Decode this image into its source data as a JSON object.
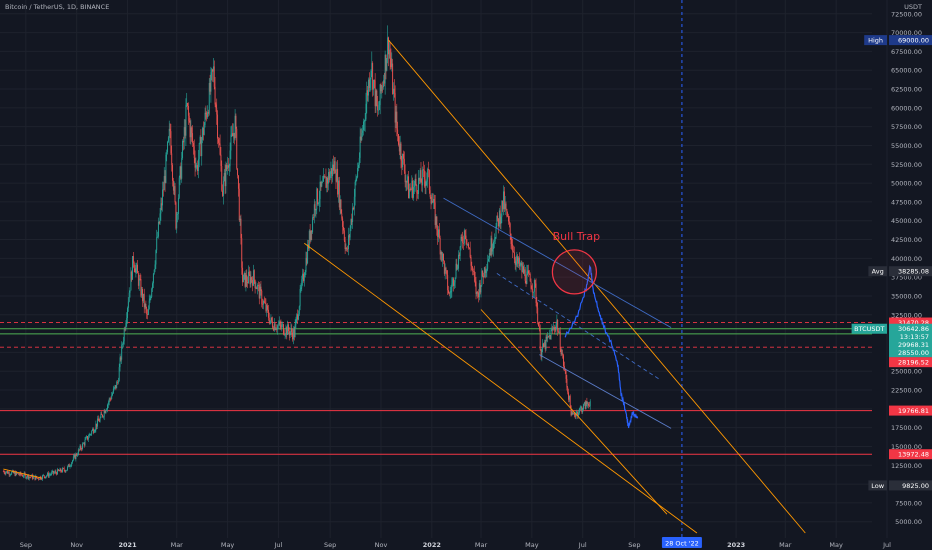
{
  "header": {
    "symbol_title": "Bitcoin / TetherUS, 1D, BINANCE"
  },
  "colors": {
    "background": "#131722",
    "grid": "#1e222d",
    "up": "#26a69a",
    "down": "#ef5350",
    "projection": "#2962ff",
    "trendline": "#ff9800",
    "resistance_channel": "#3f6bc4",
    "red_level": "#f23645",
    "green_level": "#4caf50",
    "label_dark": "#2a2e39",
    "label_blue": "#1e3a8a"
  },
  "chart_data": {
    "type": "candlestick",
    "title": "Bitcoin / TetherUS, 1D, BINANCE",
    "price_axis_unit": "USDT",
    "ylim": [
      3500,
      73000
    ],
    "x_ticks": [
      {
        "label": "Sep",
        "date": "2020-09-01",
        "bold": false
      },
      {
        "label": "Nov",
        "date": "2020-11-01",
        "bold": false
      },
      {
        "label": "2021",
        "date": "2021-01-01",
        "bold": true
      },
      {
        "label": "Mar",
        "date": "2021-03-01",
        "bold": false
      },
      {
        "label": "May",
        "date": "2021-05-01",
        "bold": false
      },
      {
        "label": "Jul",
        "date": "2021-07-01",
        "bold": false
      },
      {
        "label": "Sep",
        "date": "2021-09-01",
        "bold": false
      },
      {
        "label": "Nov",
        "date": "2021-11-01",
        "bold": false
      },
      {
        "label": "2022",
        "date": "2022-01-01",
        "bold": true
      },
      {
        "label": "Mar",
        "date": "2022-03-01",
        "bold": false
      },
      {
        "label": "May",
        "date": "2022-05-01",
        "bold": false
      },
      {
        "label": "Jul",
        "date": "2022-07-01",
        "bold": false
      },
      {
        "label": "Sep",
        "date": "2022-09-01",
        "bold": false
      },
      {
        "label": "2023",
        "date": "2023-01-01",
        "bold": true
      },
      {
        "label": "Mar",
        "date": "2023-03-01",
        "bold": false
      },
      {
        "label": "May",
        "date": "2023-05-01",
        "bold": false
      },
      {
        "label": "Jul",
        "date": "2023-07-01",
        "bold": false
      }
    ],
    "y_ticks": [
      "5000.00",
      "7500.00",
      "10000.00",
      "12500.00",
      "15000.00",
      "17500.00",
      "20000.00",
      "22500.00",
      "25000.00",
      "27500.00",
      "30000.00",
      "32500.00",
      "35000.00",
      "37500.00",
      "40000.00",
      "42500.00",
      "45000.00",
      "47500.00",
      "50000.00",
      "52500.00",
      "55000.00",
      "57500.00",
      "60000.00",
      "62500.00",
      "65000.00",
      "67500.00",
      "70000.00",
      "72500.00"
    ],
    "price_series": [
      {
        "date": "2020-08-05",
        "price": 11700
      },
      {
        "date": "2020-09-15",
        "price": 10800
      },
      {
        "date": "2020-10-20",
        "price": 12000
      },
      {
        "date": "2020-11-10",
        "price": 15500
      },
      {
        "date": "2020-12-01",
        "price": 19000
      },
      {
        "date": "2020-12-20",
        "price": 23500
      },
      {
        "date": "2021-01-08",
        "price": 40000
      },
      {
        "date": "2021-01-25",
        "price": 32000
      },
      {
        "date": "2021-02-10",
        "price": 46500
      },
      {
        "date": "2021-02-21",
        "price": 57000
      },
      {
        "date": "2021-02-28",
        "price": 45000
      },
      {
        "date": "2021-03-13",
        "price": 60000
      },
      {
        "date": "2021-03-25",
        "price": 52000
      },
      {
        "date": "2021-04-14",
        "price": 64800
      },
      {
        "date": "2021-04-25",
        "price": 49000
      },
      {
        "date": "2021-05-10",
        "price": 58000
      },
      {
        "date": "2021-05-19",
        "price": 37000
      },
      {
        "date": "2021-06-01",
        "price": 37500
      },
      {
        "date": "2021-06-22",
        "price": 31500
      },
      {
        "date": "2021-07-20",
        "price": 30000
      },
      {
        "date": "2021-08-14",
        "price": 47500
      },
      {
        "date": "2021-09-07",
        "price": 52500
      },
      {
        "date": "2021-09-21",
        "price": 40500
      },
      {
        "date": "2021-10-20",
        "price": 66000
      },
      {
        "date": "2021-10-28",
        "price": 59000
      },
      {
        "date": "2021-11-10",
        "price": 69000
      },
      {
        "date": "2021-11-20",
        "price": 57000
      },
      {
        "date": "2021-12-04",
        "price": 49000
      },
      {
        "date": "2021-12-27",
        "price": 51000
      },
      {
        "date": "2022-01-22",
        "price": 35000
      },
      {
        "date": "2022-02-10",
        "price": 44000
      },
      {
        "date": "2022-02-24",
        "price": 35000
      },
      {
        "date": "2022-03-28",
        "price": 47500
      },
      {
        "date": "2022-04-12",
        "price": 39500
      },
      {
        "date": "2022-05-05",
        "price": 36000
      },
      {
        "date": "2022-05-12",
        "price": 27500
      },
      {
        "date": "2022-05-31",
        "price": 31500
      },
      {
        "date": "2022-06-18",
        "price": 19000
      },
      {
        "date": "2022-07-10",
        "price": 21000
      }
    ],
    "projection": [
      {
        "date": "2022-06-10",
        "price": 29500
      },
      {
        "date": "2022-06-25",
        "price": 32500
      },
      {
        "date": "2022-07-05",
        "price": 36000
      },
      {
        "date": "2022-07-10",
        "price": 39000
      },
      {
        "date": "2022-07-14",
        "price": 35500
      },
      {
        "date": "2022-07-20",
        "price": 33000
      },
      {
        "date": "2022-07-26",
        "price": 31000
      },
      {
        "date": "2022-08-05",
        "price": 28500
      },
      {
        "date": "2022-08-12",
        "price": 26000
      },
      {
        "date": "2022-08-16",
        "price": 22000
      },
      {
        "date": "2022-08-22",
        "price": 19500
      },
      {
        "date": "2022-08-25",
        "price": 17500
      },
      {
        "date": "2022-08-30",
        "price": 19500
      },
      {
        "date": "2022-09-05",
        "price": 18800
      }
    ],
    "trendlines": [
      {
        "kind": "upper_wedge",
        "from": {
          "date": "2021-11-10",
          "price": 69000
        },
        "to": {
          "date": "2023-03-25",
          "price": 3500
        }
      },
      {
        "kind": "lower_wedge",
        "from": {
          "date": "2021-08-01",
          "price": 42000
        },
        "to": {
          "date": "2022-11-15",
          "price": 3500
        }
      },
      {
        "kind": "pre_2021_base",
        "from": {
          "date": "2020-08-05",
          "price": 12000
        },
        "to": {
          "date": "2020-09-20",
          "price": 10800
        }
      },
      {
        "kind": "upper_channel",
        "from": {
          "date": "2022-01-15",
          "price": 48000
        },
        "to": {
          "date": "2022-10-15",
          "price": 30800
        }
      },
      {
        "kind": "lower_channel_dashed",
        "from": {
          "date": "2022-03-20",
          "price": 38000
        },
        "to": {
          "date": "2022-09-30",
          "price": 24000
        }
      },
      {
        "kind": "descending_support",
        "from": {
          "date": "2022-03-01",
          "price": 33200
        },
        "to": {
          "date": "2022-10-10",
          "price": 6000
        }
      },
      {
        "kind": "blue_support",
        "from": {
          "date": "2022-05-10",
          "price": 27200
        },
        "to": {
          "date": "2022-10-15",
          "price": 17400
        }
      }
    ],
    "horizontal_levels": [
      {
        "price": 31470.28,
        "style": "dashed",
        "color": "#f23645"
      },
      {
        "price": 30642.86,
        "style": "solid",
        "color": "#4caf50"
      },
      {
        "price": 29968.31,
        "style": "solid",
        "color": "#4caf50"
      },
      {
        "price": 28196.52,
        "style": "dashed",
        "color": "#f23645"
      },
      {
        "price": 19766.81,
        "style": "solid",
        "color": "#f23645"
      },
      {
        "price": 13972.48,
        "style": "solid",
        "color": "#f23645"
      }
    ],
    "axis_labels": [
      {
        "tag": "High",
        "value": "69000.00",
        "price": 69000,
        "color": "#1e3a8a"
      },
      {
        "tag": "Avg",
        "value": "38285.08",
        "price": 38285.08,
        "color": "#2a2e39"
      },
      {
        "tag": "",
        "value": "31470.28",
        "price": 31470.28,
        "color": "#f23645"
      },
      {
        "tag": "BTCUSDT",
        "value": "30642.86",
        "price": 30642.86,
        "color": "#26a69a"
      },
      {
        "tag": "",
        "value": "13:13:57",
        "price": 29600,
        "color": "#26a69a"
      },
      {
        "tag": "",
        "value": "29968.31",
        "price": 28550,
        "color": "#26a69a"
      },
      {
        "tag": "",
        "value": "28550.00",
        "price": 27500,
        "color": "#26a69a"
      },
      {
        "tag": "",
        "value": "28196.52",
        "price": 26200,
        "color": "#f23645"
      },
      {
        "tag": "",
        "value": "19766.81",
        "price": 19766.81,
        "color": "#f23645"
      },
      {
        "tag": "",
        "value": "13972.48",
        "price": 13972.48,
        "color": "#f23645"
      },
      {
        "tag": "Low",
        "value": "9825.00",
        "price": 9825,
        "color": "#2a2e39"
      }
    ],
    "date_label": {
      "text": "28 Oct '22",
      "date": "2022-10-28"
    },
    "annotation": {
      "text": "Bull Trap",
      "date": "2022-06-21",
      "price": 38200
    }
  }
}
